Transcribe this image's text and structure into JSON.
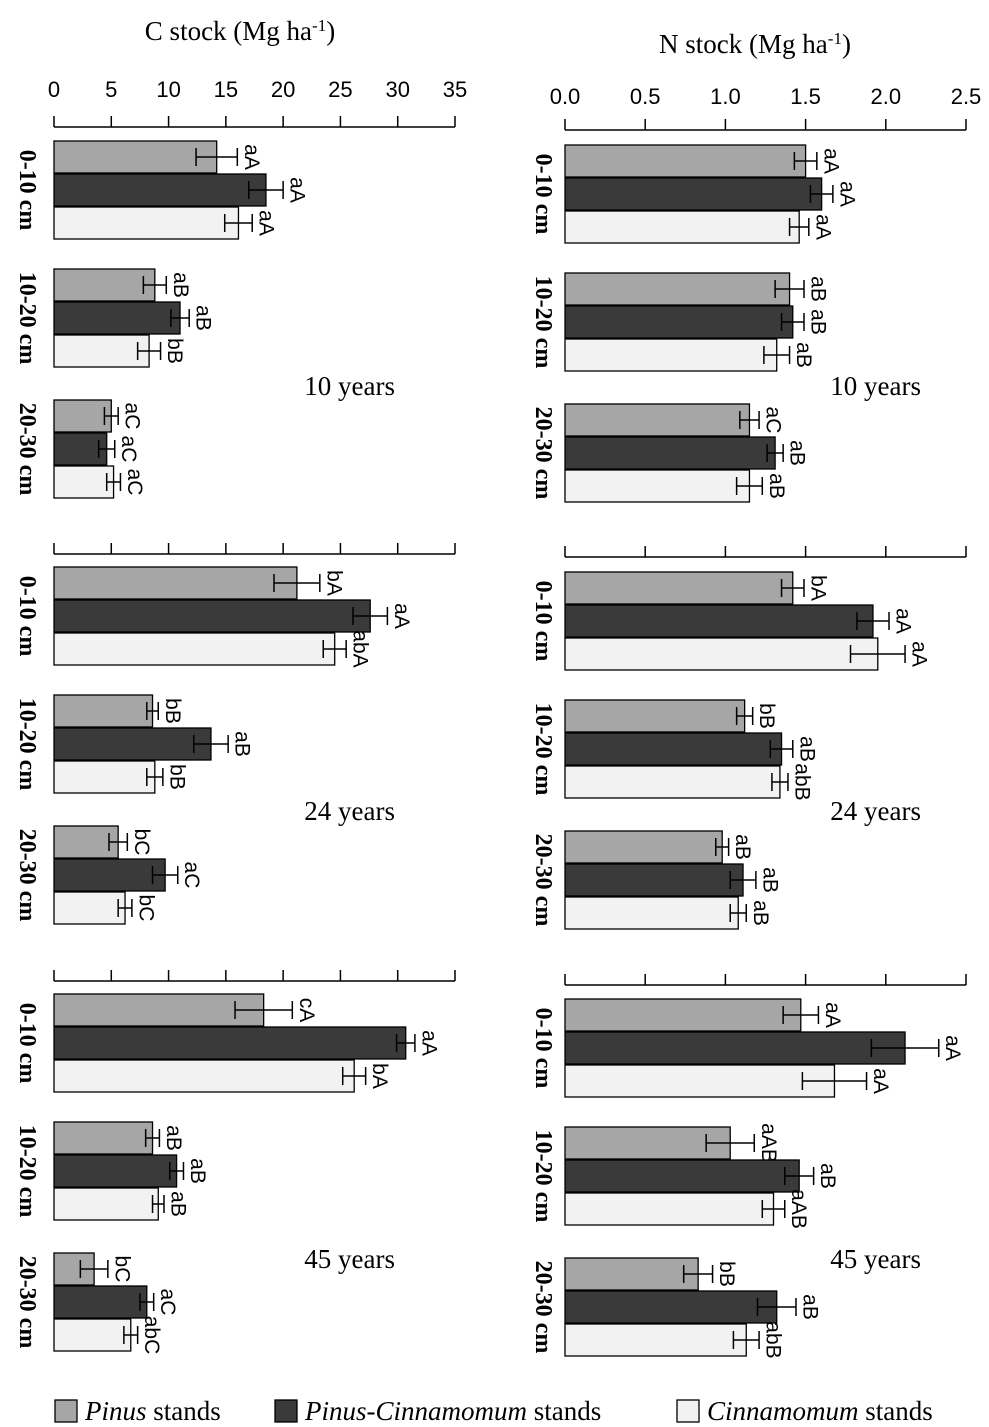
{
  "colors": {
    "pinus": "#a6a6a6",
    "mixed": "#3a3a3a",
    "cinnamomum": "#f2f2f2",
    "stroke": "#000000"
  },
  "legend": [
    {
      "italic": "Pinus",
      "rest": " stands",
      "color": "#a6a6a6"
    },
    {
      "italic": "Pinus-Cinnamomum",
      "rest": " stands",
      "color": "#3a3a3a"
    },
    {
      "italic": "Cinnamomum",
      "rest": " stands",
      "color": "#f2f2f2"
    }
  ],
  "chart_data": [
    {
      "type": "bar",
      "orientation": "horizontal",
      "title": "C stock (Mg ha-1)",
      "title_base": "C stock (Mg ha",
      "title_sup": "-1",
      "title_end": ")",
      "xlim": [
        0,
        35
      ],
      "ticks": [
        "0",
        "5",
        "10",
        "15",
        "20",
        "25",
        "30",
        "35"
      ],
      "tick_values": [
        0,
        5,
        10,
        15,
        20,
        25,
        30,
        35
      ],
      "depths": [
        "0-10 cm",
        "10-20 cm",
        "20-30 cm"
      ],
      "series_order": [
        "Pinus stands",
        "Pinus-Cinnamomum stands",
        "Cinnamomum stands"
      ],
      "panels": [
        {
          "label": "10 years",
          "groups": [
            {
              "depth": "0-10 cm",
              "values": [
                14.2,
                18.5,
                16.1
              ],
              "errors": [
                1.8,
                1.5,
                1.2
              ],
              "letters": [
                "aA",
                "aA",
                "aA"
              ]
            },
            {
              "depth": "10-20 cm",
              "values": [
                8.8,
                11.0,
                8.3
              ],
              "errors": [
                1.0,
                0.8,
                1.0
              ],
              "letters": [
                "aB",
                "aB",
                "bB"
              ]
            },
            {
              "depth": "20-30 cm",
              "values": [
                5.0,
                4.6,
                5.2
              ],
              "errors": [
                0.6,
                0.7,
                0.6
              ],
              "letters": [
                "aC",
                "aC",
                "aC"
              ]
            }
          ]
        },
        {
          "label": "24 years",
          "groups": [
            {
              "depth": "0-10 cm",
              "values": [
                21.2,
                27.6,
                24.5
              ],
              "errors": [
                2.0,
                1.5,
                1.0
              ],
              "letters": [
                "bA",
                "aA",
                "abA"
              ]
            },
            {
              "depth": "10-20 cm",
              "values": [
                8.6,
                13.7,
                8.8
              ],
              "errors": [
                0.5,
                1.5,
                0.7
              ],
              "letters": [
                "bB",
                "aB",
                "bB"
              ]
            },
            {
              "depth": "20-30 cm",
              "values": [
                5.6,
                9.7,
                6.2
              ],
              "errors": [
                0.8,
                1.1,
                0.6
              ],
              "letters": [
                "bC",
                "aC",
                "bC"
              ]
            }
          ]
        },
        {
          "label": "45 years",
          "groups": [
            {
              "depth": "0-10 cm",
              "values": [
                18.3,
                30.7,
                26.2
              ],
              "errors": [
                2.5,
                0.8,
                1.0
              ],
              "letters": [
                "cA",
                "aA",
                "bA"
              ]
            },
            {
              "depth": "10-20 cm",
              "values": [
                8.6,
                10.7,
                9.1
              ],
              "errors": [
                0.6,
                0.6,
                0.5
              ],
              "letters": [
                "aB",
                "aB",
                "aB"
              ]
            },
            {
              "depth": "20-30 cm",
              "values": [
                3.5,
                8.1,
                6.7
              ],
              "errors": [
                1.2,
                0.6,
                0.6
              ],
              "letters": [
                "bC",
                "aC",
                "abC"
              ]
            }
          ]
        }
      ]
    },
    {
      "type": "bar",
      "orientation": "horizontal",
      "title": "N stock (Mg ha-1)",
      "title_base": "N stock (Mg ha",
      "title_sup": "-1",
      "title_end": ")",
      "xlim": [
        0,
        2.5
      ],
      "ticks": [
        "0.0",
        "0.5",
        "1.0",
        "1.5",
        "2.0",
        "2.5"
      ],
      "tick_values": [
        0,
        0.5,
        1.0,
        1.5,
        2.0,
        2.5
      ],
      "depths": [
        "0-10 cm",
        "10-20 cm",
        "20-30 cm"
      ],
      "series_order": [
        "Pinus stands",
        "Pinus-Cinnamomum stands",
        "Cinnamomum stands"
      ],
      "panels": [
        {
          "label": "10 years",
          "groups": [
            {
              "depth": "0-10 cm",
              "values": [
                1.5,
                1.6,
                1.46
              ],
              "errors": [
                0.07,
                0.07,
                0.06
              ],
              "letters": [
                "aA",
                "aA",
                "aA"
              ]
            },
            {
              "depth": "10-20 cm",
              "values": [
                1.4,
                1.42,
                1.32
              ],
              "errors": [
                0.09,
                0.07,
                0.08
              ],
              "letters": [
                "aB",
                "aB",
                "aB"
              ]
            },
            {
              "depth": "20-30 cm",
              "values": [
                1.15,
                1.31,
                1.15
              ],
              "errors": [
                0.06,
                0.05,
                0.08
              ],
              "letters": [
                "aC",
                "aB",
                "aB"
              ]
            }
          ]
        },
        {
          "label": "24 years",
          "groups": [
            {
              "depth": "0-10 cm",
              "values": [
                1.42,
                1.92,
                1.95
              ],
              "errors": [
                0.07,
                0.1,
                0.17
              ],
              "letters": [
                "bA",
                "aA",
                "aA"
              ]
            },
            {
              "depth": "10-20 cm",
              "values": [
                1.12,
                1.35,
                1.34
              ],
              "errors": [
                0.05,
                0.07,
                0.05
              ],
              "letters": [
                "bB",
                "aB",
                "abB"
              ]
            },
            {
              "depth": "20-30 cm",
              "values": [
                0.98,
                1.11,
                1.08
              ],
              "errors": [
                0.04,
                0.08,
                0.05
              ],
              "letters": [
                "aB",
                "aB",
                "aB"
              ]
            }
          ]
        },
        {
          "label": "45 years",
          "groups": [
            {
              "depth": "0-10 cm",
              "values": [
                1.47,
                2.12,
                1.68
              ],
              "errors": [
                0.11,
                0.21,
                0.2
              ],
              "letters": [
                "aA",
                "aA",
                "aA"
              ]
            },
            {
              "depth": "10-20 cm",
              "values": [
                1.03,
                1.46,
                1.3
              ],
              "errors": [
                0.15,
                0.09,
                0.07
              ],
              "letters": [
                "aAB",
                "aB",
                "aAB"
              ]
            },
            {
              "depth": "20-30 cm",
              "values": [
                0.83,
                1.32,
                1.13
              ],
              "errors": [
                0.09,
                0.12,
                0.08
              ],
              "letters": [
                "bB",
                "aB",
                "abB"
              ]
            }
          ]
        }
      ]
    }
  ]
}
